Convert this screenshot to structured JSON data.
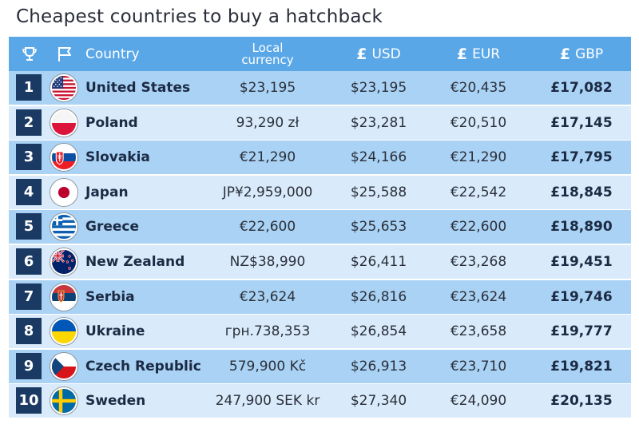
{
  "title": "Cheapest countries to buy a hatchback",
  "header": {
    "country": "Country",
    "local_line1": "Local",
    "local_line2": "currency",
    "usd_symbol": "£",
    "usd": "USD",
    "eur_symbol": "£",
    "eur": "EUR",
    "gbp_symbol": "£",
    "gbp": "GBP",
    "icons": [
      "trophy-icon",
      "flag-icon"
    ]
  },
  "rows": [
    {
      "rank": "1",
      "country": "United States",
      "flag": "us",
      "local": "$23,195",
      "usd": "$23,195",
      "eur": "€20,435",
      "gbp": "£17,082"
    },
    {
      "rank": "2",
      "country": "Poland",
      "flag": "pl",
      "local": "93,290 zł",
      "usd": "$23,281",
      "eur": "€20,510",
      "gbp": "£17,145"
    },
    {
      "rank": "3",
      "country": "Slovakia",
      "flag": "sk",
      "local": "€21,290",
      "usd": "$24,166",
      "eur": "€21,290",
      "gbp": "£17,795"
    },
    {
      "rank": "4",
      "country": "Japan",
      "flag": "jp",
      "local": "JP¥2,959,000",
      "usd": "$25,588",
      "eur": "€22,542",
      "gbp": "£18,845"
    },
    {
      "rank": "5",
      "country": "Greece",
      "flag": "gr",
      "local": "€22,600",
      "usd": "$25,653",
      "eur": "€22,600",
      "gbp": "£18,890"
    },
    {
      "rank": "6",
      "country": "New Zealand",
      "flag": "nz",
      "local": "NZ$38,990",
      "usd": "$26,411",
      "eur": "€23,268",
      "gbp": "£19,451"
    },
    {
      "rank": "7",
      "country": "Serbia",
      "flag": "rs",
      "local": "€23,624",
      "usd": "$26,816",
      "eur": "€23,624",
      "gbp": "£19,746"
    },
    {
      "rank": "8",
      "country": "Ukraine",
      "flag": "ua",
      "local": "грн.738,353",
      "usd": "$26,854",
      "eur": "€23,658",
      "gbp": "£19,777"
    },
    {
      "rank": "9",
      "country": "Czech Republic",
      "flag": "cz",
      "local": "579,900 Kč",
      "usd": "$26,913",
      "eur": "€23,710",
      "gbp": "£19,821"
    },
    {
      "rank": "10",
      "country": "Sweden",
      "flag": "se",
      "local": "247,900 SEK kr",
      "usd": "$27,340",
      "eur": "€24,090",
      "gbp": "£20,135"
    }
  ],
  "colors": {
    "header_bg": "#5aa7e8",
    "row_dark": "#a9d2f4",
    "row_light": "#d9ebfa",
    "rank_bg": "#1b3a63"
  }
}
